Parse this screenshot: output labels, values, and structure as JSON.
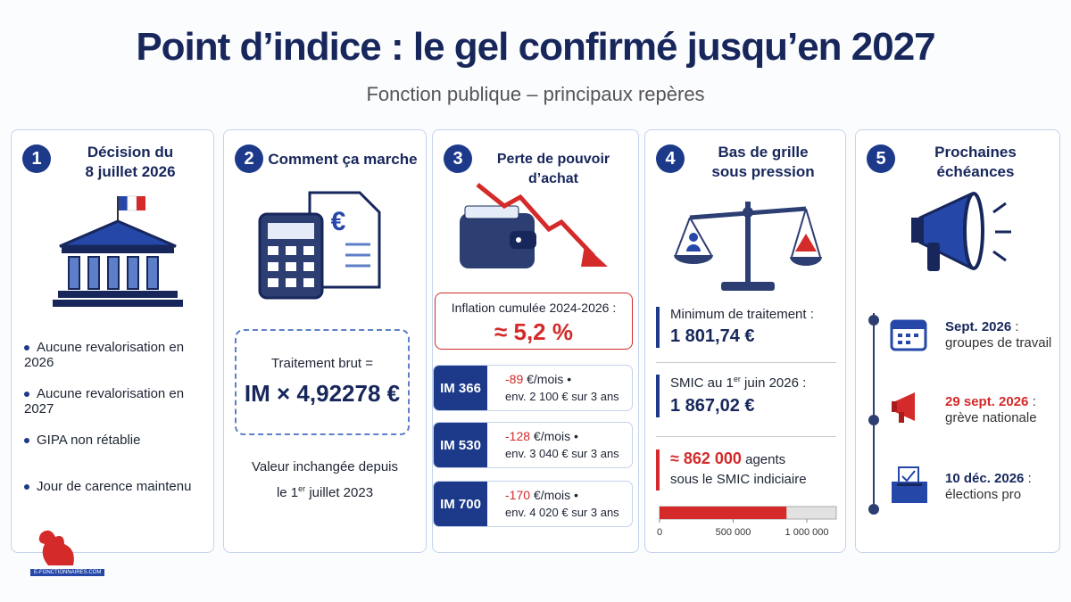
{
  "header": {
    "title": "Point d’indice : le gel confirmé jusqu’en 2027",
    "subtitle": "Fonction publique – principaux repères"
  },
  "cards": [
    {
      "number": "1",
      "title_lines": [
        "Décision du",
        "8 juillet 2026"
      ],
      "items": [
        "Aucune revalorisation en 2026",
        "Aucune revalorisation en 2027",
        "GIPA non rétablie",
        "Jour de carence maintenu"
      ]
    },
    {
      "number": "2",
      "title_lines": [
        "Comment ça marche"
      ],
      "formula_label": "Traitement brut =",
      "formula": "IM × 4,92278 €",
      "note": {
        "line1": "Valeur inchangée depuis",
        "pre": "le 1",
        "sup": "er",
        "post": " juillet 2023"
      }
    },
    {
      "number": "3",
      "title_lines": [
        "Perte de pouvoir d’achat"
      ],
      "inflation_label": "Inflation cumulée 2024-2026 :",
      "inflation_value": "≈ 5,2 %",
      "rows": [
        {
          "im": "IM 366",
          "loss": "-89",
          "unit": " €/mois •",
          "total": "env. 2 100 € sur 3 ans"
        },
        {
          "im": "IM 530",
          "loss": "-128",
          "unit": " €/mois •",
          "total": "env. 3 040 € sur 3 ans"
        },
        {
          "im": "IM 700",
          "loss": "-170",
          "unit": " €/mois •",
          "total": "env. 4 020 € sur 3 ans"
        }
      ]
    },
    {
      "number": "4",
      "title_lines": [
        "Bas de grille",
        "sous pression"
      ],
      "minimum_label": "Minimum de traitement :",
      "minimum_value": "1 801,74 €",
      "smic_label": {
        "pre": "SMIC au 1",
        "sup": "er",
        "post": " juin 2026 :"
      },
      "smic_value": "1 867,02 €",
      "agents_suffix": " agents",
      "agents_line2": "sous le SMIC indiciaire",
      "gauge": {
        "value": 862000,
        "value_label": "≈ 862 000",
        "xlim": [
          0,
          1200000
        ],
        "xticks": [
          0,
          {
            "value": 500000,
            "label": "500 000"
          },
          {
            "value": 1000000,
            "label": "1 000 000"
          }
        ],
        "color": "#d42a2a"
      }
    },
    {
      "number": "5",
      "title_lines": [
        "Prochaines",
        "échéances"
      ],
      "events": [
        {
          "date": "Sept. 2026",
          "sep": " :",
          "desc": "groupes de travail"
        },
        {
          "date": "29 sept. 2026",
          "sep": " :",
          "desc": "grève nationale"
        },
        {
          "date": "10 déc. 2026",
          "sep": " :",
          "desc": "élections pro"
        }
      ]
    }
  ],
  "logo": "E-FONCTIONNAIRES.COM"
}
